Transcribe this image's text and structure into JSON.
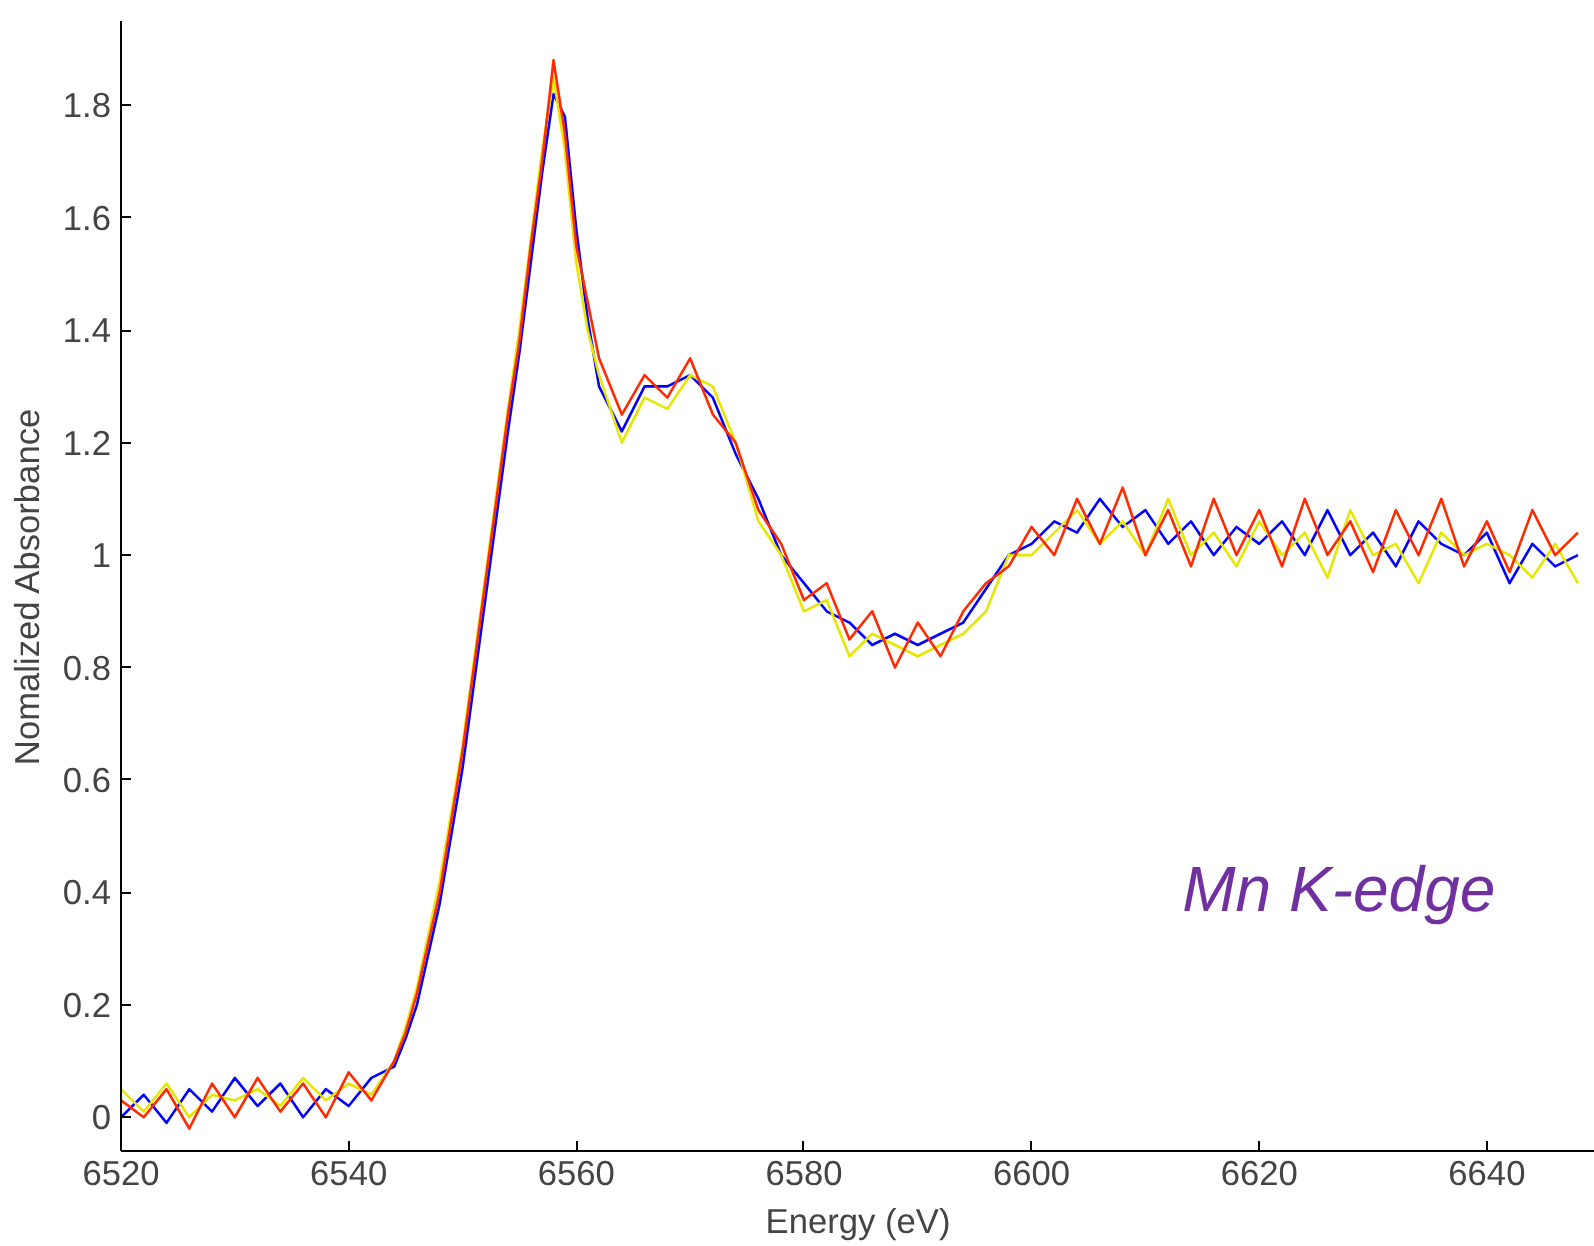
{
  "chart_data": {
    "type": "line",
    "xlabel": "Energy (eV)",
    "ylabel": "Nomalized Absorbance",
    "annotations": [
      "Mn K-edge"
    ],
    "x": [
      6520,
      6522,
      6524,
      6526,
      6528,
      6530,
      6532,
      6534,
      6536,
      6538,
      6540,
      6542,
      6544,
      6545,
      6546,
      6548,
      6550,
      6552,
      6554,
      6555,
      6556,
      6557,
      6558,
      6559,
      6560,
      6561,
      6562,
      6564,
      6566,
      6568,
      6570,
      6572,
      6574,
      6576,
      6578,
      6580,
      6582,
      6584,
      6586,
      6588,
      6590,
      6592,
      6594,
      6596,
      6598,
      6600,
      6602,
      6604,
      6606,
      6608,
      6610,
      6612,
      6614,
      6616,
      6618,
      6620,
      6622,
      6624,
      6626,
      6628,
      6630,
      6632,
      6634,
      6636,
      6638,
      6640,
      6642,
      6644,
      6646,
      6648
    ],
    "series": [
      {
        "color": "#0000ff",
        "values": [
          0.0,
          0.04,
          -0.01,
          0.05,
          0.01,
          0.07,
          0.02,
          0.06,
          0.0,
          0.05,
          0.02,
          0.07,
          0.09,
          0.14,
          0.2,
          0.38,
          0.62,
          0.92,
          1.22,
          1.36,
          1.52,
          1.68,
          1.82,
          1.78,
          1.58,
          1.42,
          1.3,
          1.22,
          1.3,
          1.3,
          1.32,
          1.28,
          1.18,
          1.1,
          1.0,
          0.95,
          0.9,
          0.88,
          0.84,
          0.86,
          0.84,
          0.86,
          0.88,
          0.94,
          1.0,
          1.02,
          1.06,
          1.04,
          1.1,
          1.05,
          1.08,
          1.02,
          1.06,
          1.0,
          1.05,
          1.02,
          1.06,
          1.0,
          1.08,
          1.0,
          1.04,
          0.98,
          1.06,
          1.02,
          1.0,
          1.04,
          0.95,
          1.02,
          0.98,
          1.0
        ]
      },
      {
        "color": "#e6e600",
        "values": [
          0.05,
          0.01,
          0.06,
          0.0,
          0.04,
          0.03,
          0.05,
          0.02,
          0.07,
          0.03,
          0.06,
          0.04,
          0.1,
          0.16,
          0.23,
          0.42,
          0.66,
          0.96,
          1.26,
          1.4,
          1.56,
          1.72,
          1.85,
          1.72,
          1.52,
          1.4,
          1.32,
          1.2,
          1.28,
          1.26,
          1.32,
          1.3,
          1.2,
          1.06,
          1.0,
          0.9,
          0.92,
          0.82,
          0.86,
          0.84,
          0.82,
          0.84,
          0.86,
          0.9,
          1.0,
          1.0,
          1.04,
          1.08,
          1.02,
          1.06,
          1.0,
          1.1,
          1.0,
          1.04,
          0.98,
          1.06,
          1.0,
          1.04,
          0.96,
          1.08,
          1.0,
          1.02,
          0.95,
          1.04,
          1.0,
          1.02,
          1.0,
          0.96,
          1.02,
          0.95
        ]
      },
      {
        "color": "#ff2a00",
        "values": [
          0.03,
          0.0,
          0.05,
          -0.02,
          0.06,
          0.0,
          0.07,
          0.01,
          0.06,
          0.0,
          0.08,
          0.03,
          0.1,
          0.15,
          0.22,
          0.4,
          0.65,
          0.95,
          1.25,
          1.38,
          1.55,
          1.7,
          1.88,
          1.75,
          1.55,
          1.45,
          1.35,
          1.25,
          1.32,
          1.28,
          1.35,
          1.25,
          1.2,
          1.08,
          1.02,
          0.92,
          0.95,
          0.85,
          0.9,
          0.8,
          0.88,
          0.82,
          0.9,
          0.95,
          0.98,
          1.05,
          1.0,
          1.1,
          1.02,
          1.12,
          1.0,
          1.08,
          0.98,
          1.1,
          1.0,
          1.08,
          0.98,
          1.1,
          1.0,
          1.06,
          0.97,
          1.08,
          1.0,
          1.1,
          0.98,
          1.06,
          0.97,
          1.08,
          1.0,
          1.04
        ]
      }
    ],
    "xlim": [
      6520,
      6649.5
    ],
    "ylim": [
      -0.06,
      1.95
    ],
    "xticks": [
      6520,
      6540,
      6560,
      6580,
      6600,
      6620,
      6640
    ],
    "yticks": [
      0,
      0.2,
      0.4,
      0.6,
      0.8,
      1,
      1.2,
      1.4,
      1.6,
      1.8
    ],
    "line_style": "solid"
  }
}
